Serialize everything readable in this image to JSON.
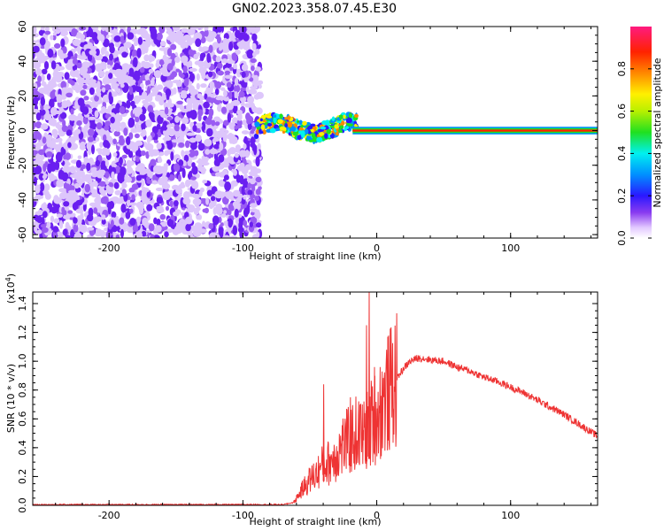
{
  "title": "GN02.2023.358.07.45.E30",
  "chart_data": [
    {
      "type": "heatmap",
      "xlabel": "Height of straight line (km)",
      "ylabel": "Frequency (Hz)",
      "xlim": [
        -257,
        165
      ],
      "ylim": [
        -62,
        60
      ],
      "xticks": [
        -200,
        -100,
        0,
        100
      ],
      "yticks": [
        -60,
        -40,
        -20,
        0,
        20,
        40,
        60
      ],
      "colorbar": {
        "label": "Normalized spectral amplitude",
        "range": [
          0,
          1
        ],
        "ticks": [
          "0.0",
          "0.2",
          "0.4",
          "0.6",
          "0.8"
        ]
      },
      "regions": [
        {
          "x": [
            -257,
            -87
          ],
          "y": [
            -62,
            60
          ],
          "description": "scattered low-amplitude noise"
        },
        {
          "x": [
            -90,
            -15
          ],
          "y": [
            -10,
            12
          ],
          "description": "meandering medium-high amplitude band near 0 Hz"
        },
        {
          "x": [
            -18,
            165
          ],
          "y": [
            -2,
            2
          ],
          "description": "steady peak amplitude line at 0 Hz"
        }
      ]
    },
    {
      "type": "line",
      "xlabel": "Height of straight line (km)",
      "ylabel": "SNR (10 * v/v)",
      "y_multiplier": "(x10",
      "y_multiplier_exp": "4",
      "y_multiplier_close": ")",
      "xlim": [
        -257,
        165
      ],
      "ylim": [
        0,
        1.48
      ],
      "xticks": [
        -200,
        -100,
        0,
        100
      ],
      "yticks": [
        "0.0",
        "0.2",
        "0.4",
        "0.6",
        "0.8",
        "1.0",
        "1.2",
        "1.4"
      ],
      "color": "#ee3333",
      "series": [
        {
          "x": [
            -257,
            -200,
            -150,
            -100,
            -70,
            -62,
            -55,
            -50,
            -45,
            -40,
            -35,
            -30,
            -25,
            -20,
            -15,
            -10,
            -5,
            -3,
            0,
            5,
            10,
            15,
            20,
            25,
            30,
            35,
            40,
            50,
            60,
            70,
            80,
            90,
            100,
            110,
            120,
            130,
            140,
            150,
            160,
            165
          ],
          "values": [
            0.005,
            0.005,
            0.005,
            0.005,
            0.005,
            0.02,
            0.12,
            0.18,
            0.22,
            0.28,
            0.3,
            0.35,
            0.42,
            0.45,
            0.5,
            0.48,
            0.55,
            0.6,
            0.62,
            0.72,
            0.8,
            0.88,
            0.95,
            1.0,
            1.02,
            1.02,
            1.01,
            1.0,
            0.96,
            0.93,
            0.89,
            0.86,
            0.82,
            0.78,
            0.73,
            0.68,
            0.63,
            0.57,
            0.51,
            0.48
          ],
          "spikes": [
            {
              "x": -40,
              "y": 0.84
            },
            {
              "x": -20,
              "y": 0.75
            },
            {
              "x": -6,
              "y": 1.48
            },
            {
              "x": -8,
              "y": 1.25
            },
            {
              "x": -2,
              "y": 0.96
            }
          ]
        }
      ]
    }
  ]
}
